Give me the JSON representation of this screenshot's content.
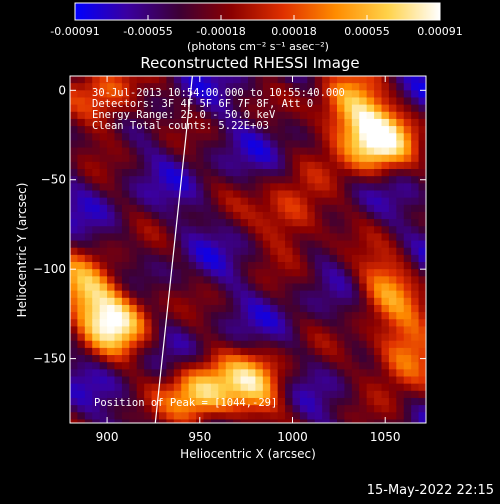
{
  "colorbar": {
    "ticks": [
      "-0.00091",
      "-0.00055",
      "-0.00018",
      "0.00018",
      "0.00055",
      "0.00091"
    ],
    "unit_label": "(photons cm⁻² s⁻¹ asec⁻²)",
    "colors": [
      "#0000ff",
      "#3a00a0",
      "#3d0035",
      "#8b0000",
      "#e03000",
      "#ff8c00",
      "#ffd24a",
      "#ffffff"
    ]
  },
  "chart_data": {
    "type": "heatmap",
    "title": "Reconstructed RHESSI Image",
    "xlabel": "Heliocentric X (arcsec)",
    "ylabel": "Heliocentric Y (arcsec)",
    "xlim": [
      880,
      1072
    ],
    "ylim": [
      -186,
      8
    ],
    "xticks": [
      900,
      950,
      1000,
      1050
    ],
    "yticks": [
      0,
      -50,
      -100,
      -150
    ],
    "value_range": [
      -0.00091,
      0.00091
    ],
    "peak": [
      1044,
      -29
    ],
    "bright_regions": [
      {
        "x": 1045,
        "y": -29,
        "value": 0.00091
      },
      {
        "x": 1030,
        "y": -10,
        "value": 0.0006
      },
      {
        "x": 905,
        "y": -130,
        "value": 0.0007
      },
      {
        "x": 890,
        "y": -110,
        "value": 0.0005
      },
      {
        "x": 950,
        "y": -170,
        "value": 0.0007
      },
      {
        "x": 980,
        "y": -165,
        "value": 0.0005
      },
      {
        "x": 900,
        "y": -5,
        "value": 0.0004
      },
      {
        "x": 1060,
        "y": -150,
        "value": 0.0006
      },
      {
        "x": 1000,
        "y": -70,
        "value": 0.0004
      },
      {
        "x": 1050,
        "y": -110,
        "value": 0.0004
      }
    ],
    "limb_line": {
      "x": [
        926,
        946
      ],
      "y": [
        -186,
        8
      ]
    }
  },
  "annotations": {
    "time_range": "30-Jul-2013 10:54:00.000 to 10:55:40.000",
    "detectors": "Detectors: 3F 4F 5F 6F 7F 8F, Att 0",
    "energy": "Energy Range: 25.0 - 50.0 keV",
    "clean": "Clean     Total counts: 5.22E+03",
    "peak_text": "Position of Peak = [1044,-29]"
  },
  "footer_date": "15-May-2022 22:15"
}
